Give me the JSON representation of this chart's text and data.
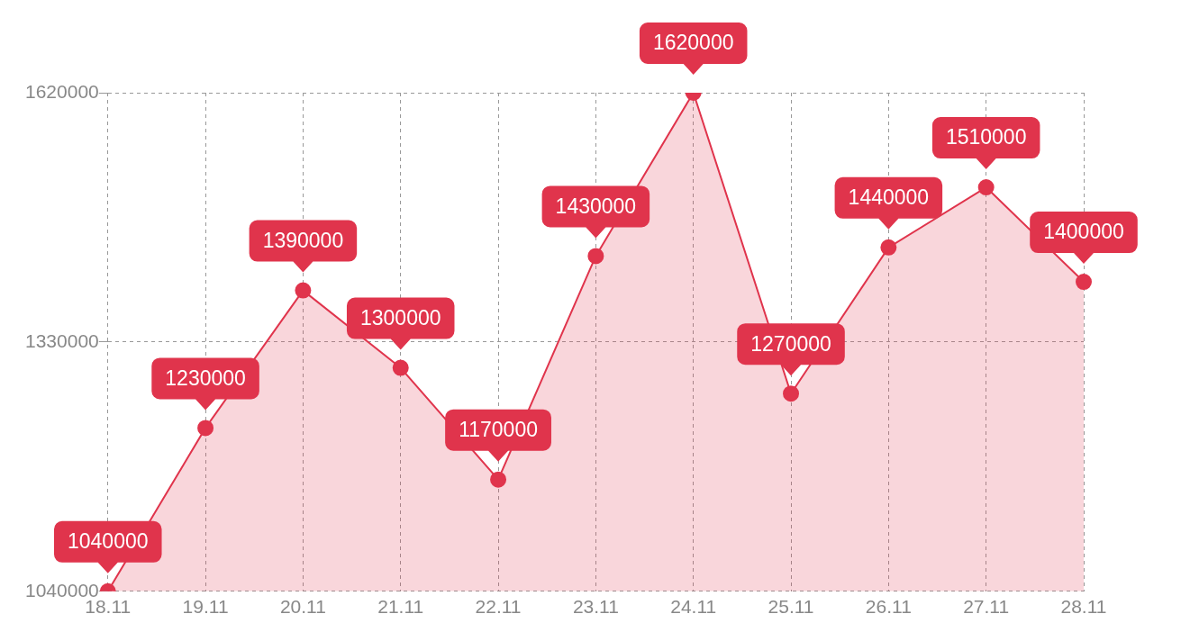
{
  "chart_data": {
    "type": "area",
    "categories": [
      "18.11",
      "19.11",
      "20.11",
      "21.11",
      "22.11",
      "23.11",
      "24.11",
      "25.11",
      "26.11",
      "27.11",
      "28.11"
    ],
    "series": [
      {
        "color": "#e0344c",
        "values": [
          1040000,
          1230000,
          1390000,
          1300000,
          1170000,
          1430000,
          1620000,
          1270000,
          1440000,
          1510000,
          1400000
        ]
      }
    ],
    "ylim": [
      1040000,
      1620000
    ],
    "yticks": [
      1040000,
      1330000,
      1620000
    ],
    "grid": true,
    "legend": false,
    "marker": "circle",
    "line_style": "solid",
    "data_labels": true
  }
}
